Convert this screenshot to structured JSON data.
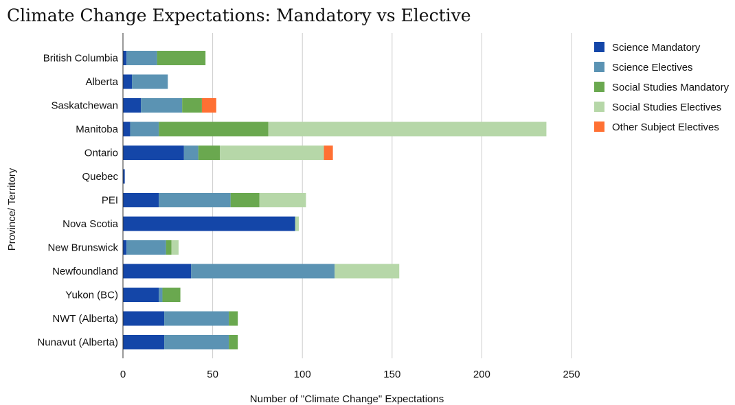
{
  "chart_data": {
    "type": "bar",
    "orientation": "horizontal",
    "stacked": true,
    "title": "Climate Change Expectations: Mandatory vs Elective",
    "xlabel": "Number of \"Climate Change\" Expectations",
    "ylabel": "Province/ Territory",
    "xlim": [
      0,
      250
    ],
    "xticks": [
      0,
      50,
      100,
      150,
      200,
      250
    ],
    "grid": true,
    "legend_position": "right",
    "categories": [
      "British Columbia",
      "Alberta",
      "Saskatchewan",
      "Manitoba",
      "Ontario",
      "Quebec",
      "PEI",
      "Nova Scotia",
      "New Brunswick",
      "Newfoundland",
      "Yukon (BC)",
      "NWT (Alberta)",
      "Nunavut (Alberta)"
    ],
    "series": [
      {
        "name": "Science Mandatory",
        "color": "#1446a8",
        "values": [
          2,
          5,
          10,
          4,
          34,
          1,
          20,
          96,
          2,
          38,
          20,
          23,
          23
        ]
      },
      {
        "name": "Science Electives",
        "color": "#5b93b3",
        "values": [
          17,
          20,
          23,
          16,
          8,
          0,
          40,
          0,
          22,
          80,
          2,
          36,
          36
        ]
      },
      {
        "name": "Social Studies Mandatory",
        "color": "#6aa84f",
        "values": [
          27,
          0,
          11,
          61,
          12,
          0,
          16,
          0,
          3,
          0,
          10,
          5,
          5
        ]
      },
      {
        "name": "Social Studies Electives",
        "color": "#b6d7a8",
        "values": [
          0,
          0,
          0,
          155,
          58,
          0,
          26,
          2,
          4,
          36,
          0,
          0,
          0
        ]
      },
      {
        "name": "Other Subject Electives",
        "color": "#ff7033",
        "values": [
          0,
          0,
          8,
          0,
          5,
          0,
          0,
          0,
          0,
          0,
          0,
          0,
          0
        ]
      }
    ]
  }
}
